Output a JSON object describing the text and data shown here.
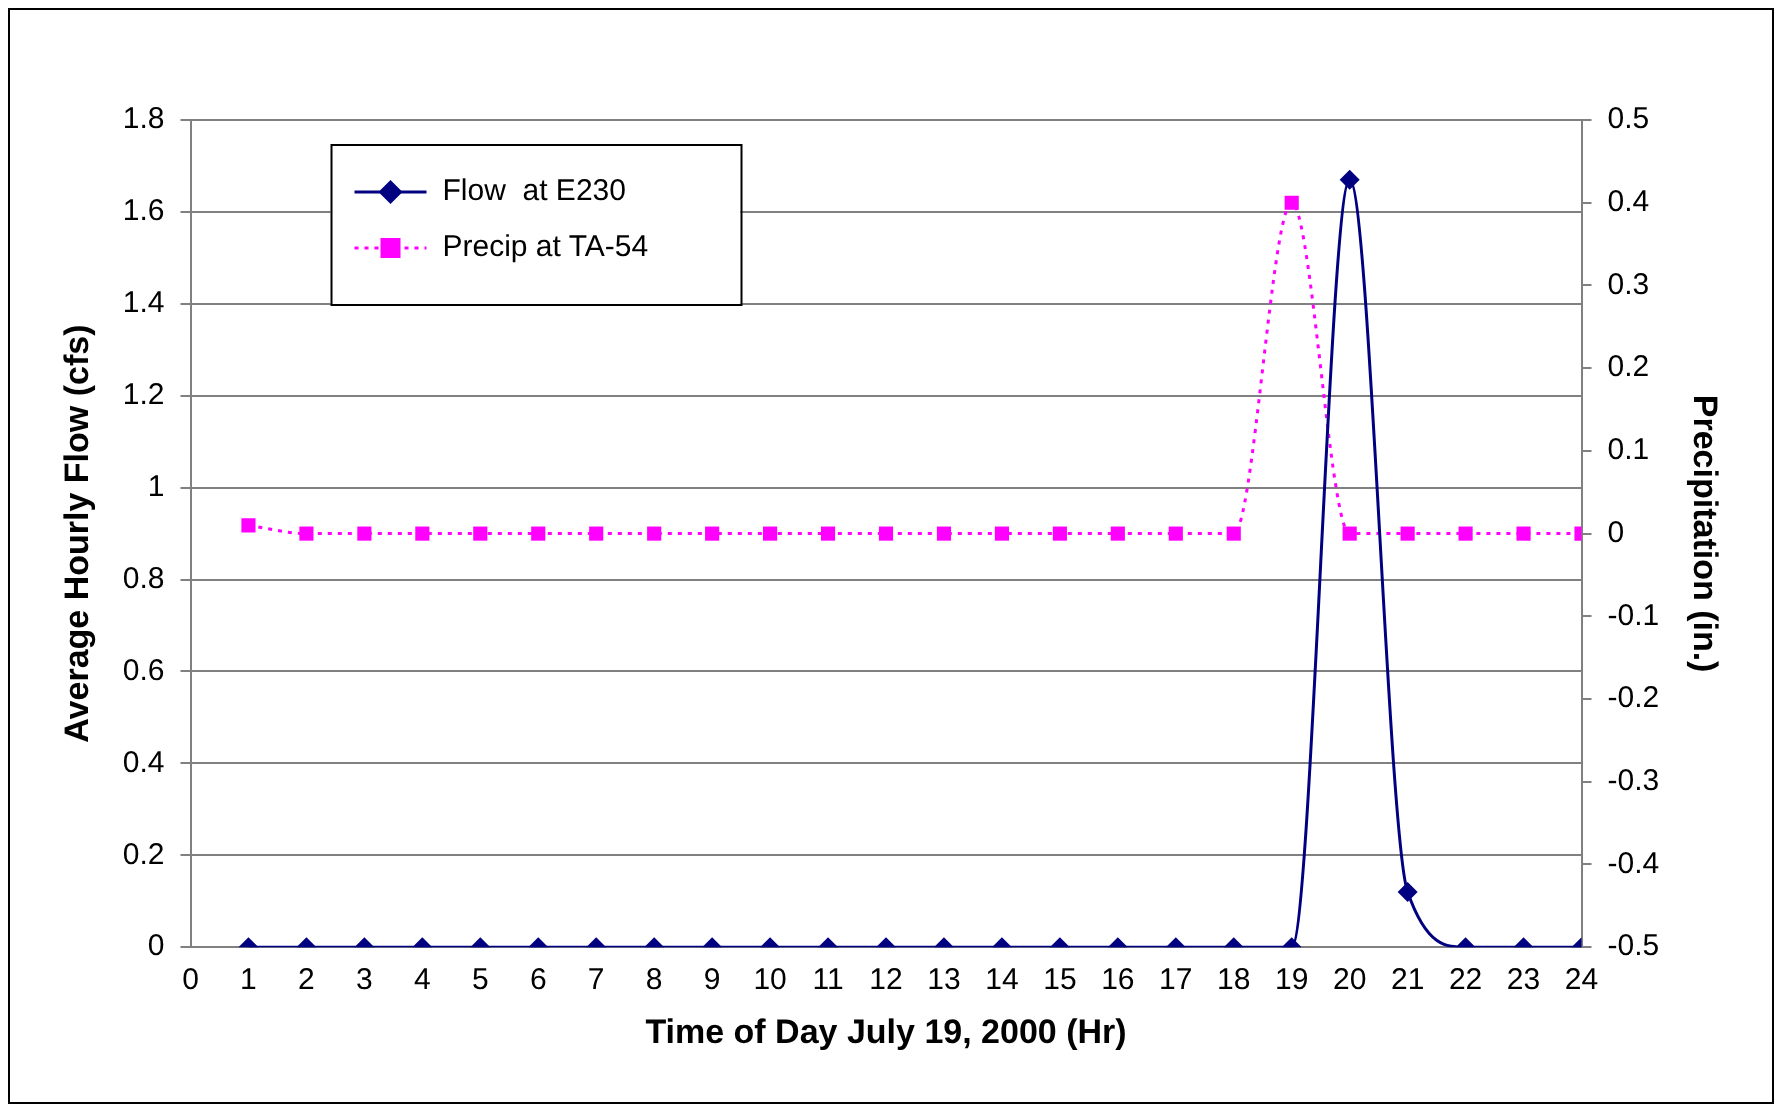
{
  "chart_data": {
    "type": "line",
    "xlabel": "Time of Day July 19, 2000 (Hr)",
    "ylabel": "Average Hourly Flow (cfs)",
    "y2label": "Precipitation (in.)",
    "x": [
      1,
      2,
      3,
      4,
      5,
      6,
      7,
      8,
      9,
      10,
      11,
      12,
      13,
      14,
      15,
      16,
      17,
      18,
      19,
      20,
      21,
      22,
      23,
      24
    ],
    "xlim": [
      0,
      24
    ],
    "xticks": [
      0,
      1,
      2,
      3,
      4,
      5,
      6,
      7,
      8,
      9,
      10,
      11,
      12,
      13,
      14,
      15,
      16,
      17,
      18,
      19,
      20,
      21,
      22,
      23,
      24
    ],
    "ylim": [
      0,
      1.8
    ],
    "yticks": [
      0,
      0.2,
      0.4,
      0.6,
      0.8,
      1,
      1.2,
      1.4,
      1.6,
      1.8
    ],
    "y2lim": [
      -0.5,
      0.5
    ],
    "y2ticks": [
      -0.5,
      -0.4,
      -0.3,
      -0.2,
      -0.1,
      0,
      0.1,
      0.2,
      0.3,
      0.4,
      0.5
    ],
    "grid": "y",
    "legend": "top left",
    "series": [
      {
        "name": "Flow  at E230",
        "color": "#000080",
        "marker": "diamond",
        "line_style": "solid",
        "values": [
          0,
          0,
          0,
          0,
          0,
          0,
          0,
          0,
          0,
          0,
          0,
          0,
          0,
          0,
          0,
          0,
          0,
          0,
          0,
          1.67,
          0.12,
          0,
          0,
          0
        ]
      },
      {
        "name": "Precip at TA-54",
        "color": "#ff00ff",
        "marker": "square",
        "line_style": "dotted",
        "axis": "y2",
        "values": [
          0.01,
          0,
          0,
          0,
          0,
          0,
          0,
          0,
          0,
          0,
          0,
          0,
          0,
          0,
          0,
          0,
          0,
          0,
          0.4,
          0,
          0,
          0,
          0,
          0
        ]
      }
    ]
  }
}
